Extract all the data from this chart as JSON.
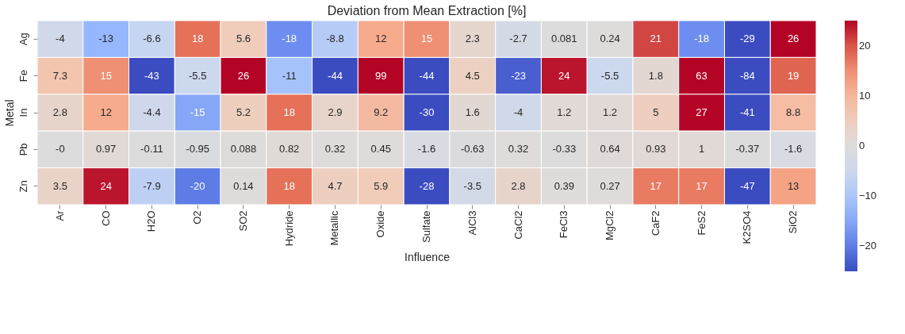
{
  "chart_data": {
    "type": "heatmap",
    "title": "Deviation from Mean Extraction [%]",
    "xlabel": "Influence",
    "ylabel": "Metal",
    "categories": [
      "Ar",
      "CO",
      "H2O",
      "O2",
      "SO2",
      "Hydride",
      "Metallic",
      "Oxide",
      "Sulfate",
      "AlCl3",
      "CaCl2",
      "FeCl3",
      "MgCl2",
      "CaF2",
      "FeS2",
      "K2SO4",
      "SiO2"
    ],
    "y_categories": [
      "Ag",
      "Fe",
      "In",
      "Pb",
      "Zn"
    ],
    "cells": [
      [
        -4,
        -13,
        -6.6,
        18,
        5.6,
        -18,
        -8.8,
        12,
        15,
        2.3,
        -2.7,
        0.081,
        0.24,
        21,
        -18,
        -29,
        26
      ],
      [
        7.3,
        15,
        -43,
        -5.5,
        26,
        -11,
        -44,
        99,
        -44,
        4.5,
        -23,
        24,
        -5.5,
        1.8,
        63,
        -84,
        19
      ],
      [
        2.8,
        12,
        -4.4,
        -15,
        5.2,
        18,
        2.9,
        9.2,
        -30,
        1.6,
        -4,
        1.2,
        1.2,
        5,
        27,
        -41,
        8.8
      ],
      [
        0,
        0.97,
        -0.11,
        -0.95,
        0.088,
        0.82,
        0.32,
        0.45,
        -1.6,
        -0.63,
        0.32,
        -0.33,
        0.64,
        0.93,
        1,
        -0.37,
        -1.6
      ],
      [
        3.5,
        24,
        -7.9,
        -20,
        0.14,
        18,
        4.7,
        5.9,
        -28,
        -3.5,
        2.8,
        0.39,
        0.27,
        17,
        17,
        -47,
        13
      ]
    ],
    "cell_labels": [
      [
        "-4",
        "-13",
        "-6.6",
        "18",
        "5.6",
        "-18",
        "-8.8",
        "12",
        "15",
        "2.3",
        "-2.7",
        "0.081",
        "0.24",
        "21",
        "-18",
        "-29",
        "26"
      ],
      [
        "7.3",
        "15",
        "-43",
        "-5.5",
        "26",
        "-11",
        "-44",
        "99",
        "-44",
        "4.5",
        "-23",
        "24",
        "-5.5",
        "1.8",
        "63",
        "-84",
        "19"
      ],
      [
        "2.8",
        "12",
        "-4.4",
        "-15",
        "5.2",
        "18",
        "2.9",
        "9.2",
        "-30",
        "1.6",
        "-4",
        "1.2",
        "1.2",
        "5",
        "27",
        "-41",
        "8.8"
      ],
      [
        "-0",
        "0.97",
        "-0.11",
        "-0.95",
        "0.088",
        "0.82",
        "0.32",
        "0.45",
        "-1.6",
        "-0.63",
        "0.32",
        "-0.33",
        "0.64",
        "0.93",
        "1",
        "-0.37",
        "-1.6"
      ],
      [
        "3.5",
        "24",
        "-7.9",
        "-20",
        "0.14",
        "18",
        "4.7",
        "5.9",
        "-28",
        "-3.5",
        "2.8",
        "0.39",
        "0.27",
        "17",
        "17",
        "-47",
        "13"
      ]
    ],
    "clim": [
      -25,
      25
    ],
    "cticks": [
      -20,
      -10,
      0,
      10,
      20
    ]
  }
}
